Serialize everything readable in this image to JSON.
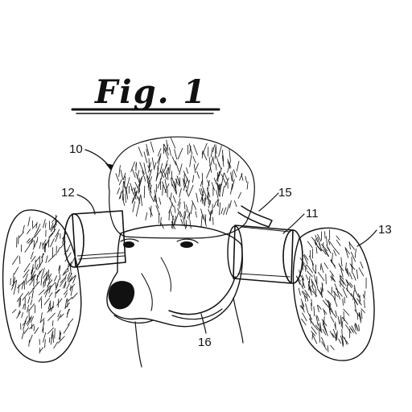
{
  "figure": {
    "title": "Fig. 1"
  },
  "references": {
    "r10": "10",
    "r11": "11",
    "r12": "12",
    "r13": "13",
    "r15": "15",
    "r16": "16"
  },
  "colors": {
    "ink": "#111111",
    "paper": "#ffffff"
  }
}
